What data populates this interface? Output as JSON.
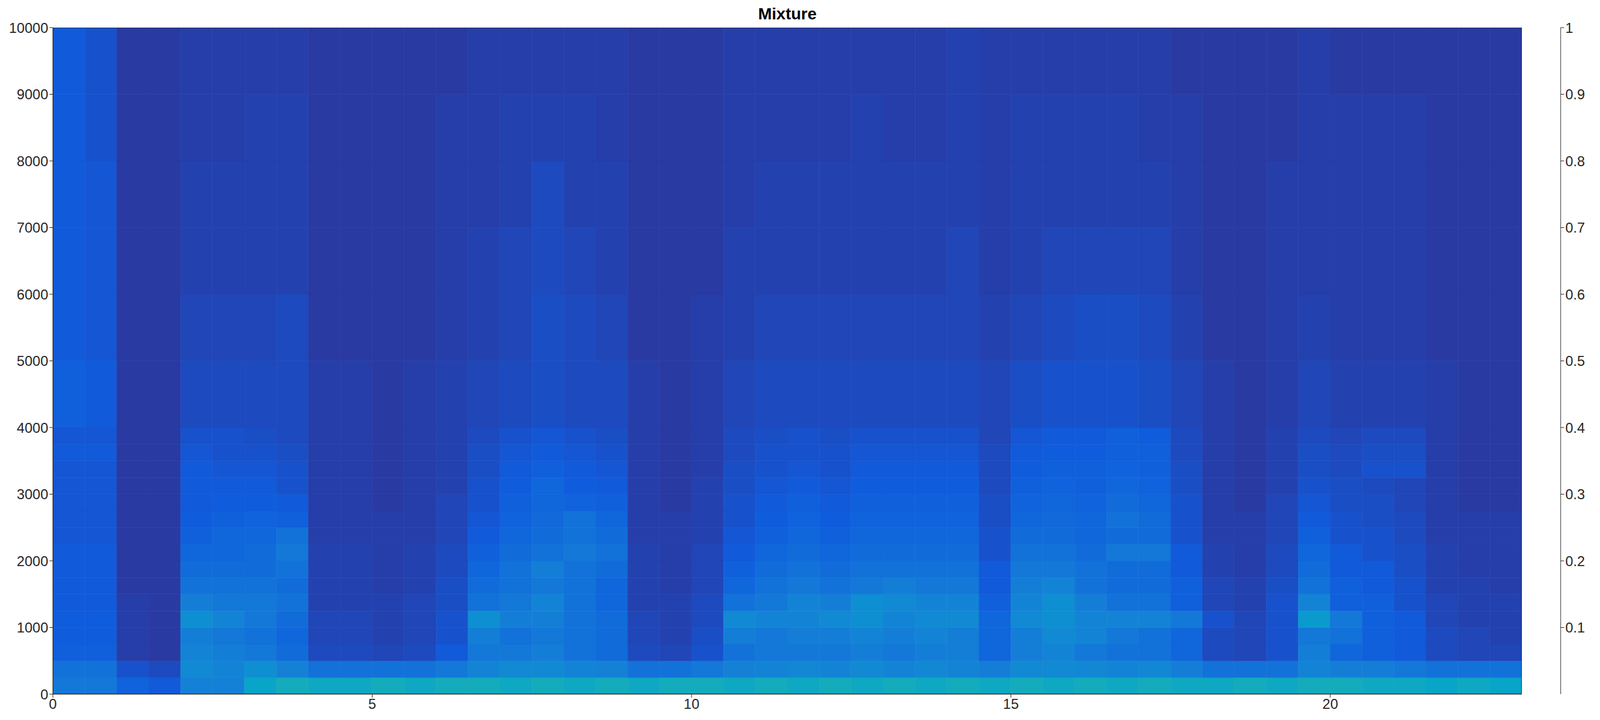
{
  "chart_data": {
    "type": "heatmap",
    "title": "Mixture",
    "x_bins": [
      0,
      0.5,
      1,
      1.5,
      2,
      2.5,
      3,
      3.5,
      4,
      4.5,
      5,
      5.5,
      6,
      6.5,
      7,
      7.5,
      8,
      8.5,
      9,
      9.5,
      10,
      10.5,
      11,
      11.5,
      12,
      12.5,
      13,
      13.5,
      14,
      14.5,
      15,
      15.5,
      16,
      16.5,
      17,
      17.5,
      18,
      18.5,
      19,
      19.5,
      20,
      20.5,
      21,
      21.5,
      22,
      22.5,
      23
    ],
    "y_bins": [
      0,
      250,
      500,
      750,
      1000,
      1250,
      1500,
      1750,
      2000,
      2250,
      2500,
      2750,
      3000,
      3250,
      3500,
      3750,
      4000,
      5000,
      6000,
      7000,
      8000,
      9000,
      10000
    ],
    "cells": [
      [
        0.22,
        0.22,
        0.15,
        0.12,
        0.25,
        0.25,
        0.38,
        0.42,
        0.4,
        0.4,
        0.42,
        0.4,
        0.42,
        0.42,
        0.4,
        0.42,
        0.4,
        0.42,
        0.4,
        0.42,
        0.42,
        0.4,
        0.42,
        0.4,
        0.42,
        0.4,
        0.42,
        0.4,
        0.42,
        0.4,
        0.42,
        0.4,
        0.42,
        0.4,
        0.42,
        0.4,
        0.4,
        0.42,
        0.4,
        0.42,
        0.42,
        0.4,
        0.4,
        0.38,
        0.4,
        0.38
      ],
      [
        0.2,
        0.2,
        0.1,
        0.08,
        0.28,
        0.26,
        0.3,
        0.25,
        0.2,
        0.2,
        0.2,
        0.2,
        0.22,
        0.26,
        0.28,
        0.28,
        0.26,
        0.25,
        0.2,
        0.2,
        0.22,
        0.25,
        0.26,
        0.27,
        0.26,
        0.28,
        0.26,
        0.27,
        0.26,
        0.24,
        0.28,
        0.28,
        0.27,
        0.26,
        0.27,
        0.24,
        0.2,
        0.2,
        0.2,
        0.26,
        0.24,
        0.24,
        0.22,
        0.2,
        0.2,
        0.2
      ],
      [
        0.14,
        0.14,
        0.05,
        0.04,
        0.26,
        0.24,
        0.22,
        0.18,
        0.08,
        0.08,
        0.07,
        0.08,
        0.12,
        0.22,
        0.22,
        0.24,
        0.2,
        0.18,
        0.08,
        0.07,
        0.1,
        0.2,
        0.22,
        0.22,
        0.22,
        0.24,
        0.22,
        0.24,
        0.24,
        0.16,
        0.24,
        0.26,
        0.22,
        0.2,
        0.2,
        0.16,
        0.08,
        0.07,
        0.1,
        0.24,
        0.16,
        0.14,
        0.12,
        0.08,
        0.07,
        0.07
      ],
      [
        0.13,
        0.13,
        0.05,
        0.04,
        0.24,
        0.22,
        0.2,
        0.16,
        0.07,
        0.07,
        0.06,
        0.07,
        0.1,
        0.24,
        0.2,
        0.22,
        0.2,
        0.18,
        0.07,
        0.06,
        0.09,
        0.24,
        0.22,
        0.24,
        0.24,
        0.26,
        0.24,
        0.26,
        0.24,
        0.16,
        0.24,
        0.28,
        0.26,
        0.22,
        0.2,
        0.16,
        0.08,
        0.07,
        0.1,
        0.22,
        0.2,
        0.14,
        0.12,
        0.08,
        0.07,
        0.06
      ],
      [
        0.13,
        0.13,
        0.05,
        0.04,
        0.3,
        0.26,
        0.22,
        0.18,
        0.07,
        0.07,
        0.06,
        0.07,
        0.1,
        0.3,
        0.24,
        0.24,
        0.2,
        0.18,
        0.07,
        0.06,
        0.08,
        0.28,
        0.26,
        0.26,
        0.28,
        0.3,
        0.26,
        0.28,
        0.28,
        0.16,
        0.28,
        0.3,
        0.26,
        0.26,
        0.26,
        0.22,
        0.1,
        0.07,
        0.1,
        0.34,
        0.22,
        0.14,
        0.12,
        0.07,
        0.06,
        0.06
      ],
      [
        0.12,
        0.12,
        0.05,
        0.04,
        0.24,
        0.22,
        0.22,
        0.2,
        0.06,
        0.06,
        0.06,
        0.07,
        0.09,
        0.2,
        0.22,
        0.26,
        0.2,
        0.16,
        0.06,
        0.06,
        0.08,
        0.2,
        0.22,
        0.26,
        0.24,
        0.3,
        0.28,
        0.26,
        0.26,
        0.14,
        0.26,
        0.3,
        0.24,
        0.2,
        0.2,
        0.14,
        0.07,
        0.06,
        0.1,
        0.26,
        0.14,
        0.14,
        0.1,
        0.07,
        0.06,
        0.06
      ],
      [
        0.12,
        0.12,
        0.04,
        0.04,
        0.2,
        0.2,
        0.2,
        0.18,
        0.06,
        0.06,
        0.05,
        0.06,
        0.09,
        0.18,
        0.2,
        0.22,
        0.2,
        0.16,
        0.06,
        0.05,
        0.07,
        0.16,
        0.2,
        0.22,
        0.2,
        0.22,
        0.24,
        0.22,
        0.22,
        0.12,
        0.24,
        0.26,
        0.2,
        0.18,
        0.18,
        0.14,
        0.07,
        0.06,
        0.09,
        0.2,
        0.14,
        0.12,
        0.1,
        0.06,
        0.06,
        0.05
      ],
      [
        0.12,
        0.12,
        0.04,
        0.04,
        0.18,
        0.18,
        0.18,
        0.2,
        0.06,
        0.06,
        0.05,
        0.06,
        0.08,
        0.16,
        0.2,
        0.24,
        0.2,
        0.18,
        0.06,
        0.05,
        0.07,
        0.14,
        0.18,
        0.2,
        0.18,
        0.2,
        0.2,
        0.2,
        0.2,
        0.12,
        0.22,
        0.22,
        0.2,
        0.18,
        0.18,
        0.12,
        0.06,
        0.05,
        0.08,
        0.18,
        0.12,
        0.12,
        0.09,
        0.06,
        0.05,
        0.05
      ],
      [
        0.12,
        0.12,
        0.04,
        0.04,
        0.16,
        0.16,
        0.18,
        0.22,
        0.06,
        0.06,
        0.05,
        0.06,
        0.08,
        0.14,
        0.18,
        0.2,
        0.22,
        0.2,
        0.06,
        0.05,
        0.07,
        0.12,
        0.16,
        0.18,
        0.16,
        0.18,
        0.18,
        0.18,
        0.18,
        0.1,
        0.2,
        0.2,
        0.18,
        0.22,
        0.22,
        0.12,
        0.06,
        0.05,
        0.08,
        0.16,
        0.12,
        0.1,
        0.09,
        0.06,
        0.05,
        0.05
      ],
      [
        0.11,
        0.11,
        0.04,
        0.04,
        0.14,
        0.16,
        0.16,
        0.2,
        0.05,
        0.05,
        0.05,
        0.05,
        0.07,
        0.12,
        0.16,
        0.18,
        0.2,
        0.18,
        0.05,
        0.05,
        0.06,
        0.11,
        0.14,
        0.16,
        0.14,
        0.16,
        0.16,
        0.16,
        0.16,
        0.1,
        0.18,
        0.18,
        0.16,
        0.18,
        0.18,
        0.1,
        0.05,
        0.05,
        0.07,
        0.14,
        0.1,
        0.1,
        0.08,
        0.05,
        0.05,
        0.05
      ],
      [
        0.11,
        0.11,
        0.04,
        0.04,
        0.13,
        0.14,
        0.15,
        0.14,
        0.05,
        0.05,
        0.05,
        0.05,
        0.07,
        0.11,
        0.15,
        0.17,
        0.2,
        0.16,
        0.05,
        0.05,
        0.06,
        0.1,
        0.13,
        0.15,
        0.13,
        0.15,
        0.15,
        0.15,
        0.15,
        0.09,
        0.16,
        0.17,
        0.16,
        0.2,
        0.18,
        0.1,
        0.05,
        0.05,
        0.07,
        0.12,
        0.1,
        0.09,
        0.08,
        0.05,
        0.05,
        0.05
      ],
      [
        0.11,
        0.11,
        0.04,
        0.04,
        0.12,
        0.13,
        0.13,
        0.12,
        0.05,
        0.05,
        0.04,
        0.05,
        0.07,
        0.1,
        0.14,
        0.16,
        0.15,
        0.14,
        0.05,
        0.04,
        0.06,
        0.1,
        0.12,
        0.14,
        0.12,
        0.14,
        0.14,
        0.14,
        0.14,
        0.09,
        0.15,
        0.16,
        0.15,
        0.18,
        0.16,
        0.1,
        0.05,
        0.04,
        0.07,
        0.11,
        0.09,
        0.09,
        0.07,
        0.05,
        0.04,
        0.04
      ],
      [
        0.11,
        0.11,
        0.04,
        0.04,
        0.12,
        0.12,
        0.12,
        0.1,
        0.05,
        0.05,
        0.04,
        0.05,
        0.06,
        0.1,
        0.13,
        0.16,
        0.13,
        0.12,
        0.05,
        0.04,
        0.06,
        0.09,
        0.11,
        0.12,
        0.11,
        0.13,
        0.13,
        0.13,
        0.13,
        0.08,
        0.14,
        0.15,
        0.14,
        0.16,
        0.15,
        0.09,
        0.05,
        0.04,
        0.06,
        0.1,
        0.09,
        0.08,
        0.07,
        0.05,
        0.04,
        0.04
      ],
      [
        0.11,
        0.11,
        0.04,
        0.04,
        0.12,
        0.11,
        0.11,
        0.1,
        0.05,
        0.05,
        0.04,
        0.05,
        0.06,
        0.09,
        0.12,
        0.14,
        0.12,
        0.11,
        0.05,
        0.04,
        0.05,
        0.09,
        0.1,
        0.11,
        0.1,
        0.12,
        0.12,
        0.12,
        0.12,
        0.08,
        0.13,
        0.14,
        0.14,
        0.15,
        0.14,
        0.09,
        0.05,
        0.04,
        0.06,
        0.09,
        0.08,
        0.1,
        0.1,
        0.05,
        0.04,
        0.04
      ],
      [
        0.12,
        0.12,
        0.04,
        0.04,
        0.11,
        0.1,
        0.1,
        0.09,
        0.05,
        0.05,
        0.04,
        0.05,
        0.06,
        0.09,
        0.11,
        0.12,
        0.11,
        0.1,
        0.05,
        0.04,
        0.05,
        0.08,
        0.1,
        0.1,
        0.1,
        0.11,
        0.11,
        0.11,
        0.11,
        0.08,
        0.12,
        0.13,
        0.13,
        0.14,
        0.14,
        0.08,
        0.05,
        0.04,
        0.06,
        0.09,
        0.08,
        0.09,
        0.09,
        0.05,
        0.04,
        0.04
      ],
      [
        0.11,
        0.11,
        0.04,
        0.04,
        0.1,
        0.1,
        0.09,
        0.08,
        0.05,
        0.05,
        0.04,
        0.05,
        0.06,
        0.08,
        0.1,
        0.11,
        0.1,
        0.09,
        0.05,
        0.04,
        0.05,
        0.08,
        0.09,
        0.1,
        0.09,
        0.1,
        0.1,
        0.1,
        0.1,
        0.07,
        0.11,
        0.12,
        0.12,
        0.14,
        0.13,
        0.08,
        0.05,
        0.04,
        0.06,
        0.08,
        0.07,
        0.08,
        0.08,
        0.05,
        0.04,
        0.04
      ],
      [
        0.14,
        0.12,
        0.04,
        0.04,
        0.08,
        0.08,
        0.08,
        0.08,
        0.05,
        0.05,
        0.04,
        0.05,
        0.06,
        0.07,
        0.08,
        0.09,
        0.08,
        0.08,
        0.05,
        0.04,
        0.05,
        0.07,
        0.08,
        0.08,
        0.08,
        0.08,
        0.08,
        0.08,
        0.08,
        0.07,
        0.09,
        0.1,
        0.1,
        0.1,
        0.09,
        0.07,
        0.05,
        0.04,
        0.05,
        0.07,
        0.06,
        0.06,
        0.06,
        0.05,
        0.04,
        0.04
      ],
      [
        0.12,
        0.11,
        0.04,
        0.04,
        0.07,
        0.07,
        0.07,
        0.08,
        0.04,
        0.04,
        0.04,
        0.04,
        0.05,
        0.06,
        0.07,
        0.09,
        0.08,
        0.07,
        0.04,
        0.04,
        0.05,
        0.06,
        0.07,
        0.07,
        0.07,
        0.07,
        0.07,
        0.07,
        0.07,
        0.06,
        0.07,
        0.08,
        0.09,
        0.09,
        0.08,
        0.06,
        0.04,
        0.04,
        0.05,
        0.06,
        0.05,
        0.05,
        0.05,
        0.04,
        0.04,
        0.04
      ],
      [
        0.12,
        0.11,
        0.04,
        0.04,
        0.06,
        0.06,
        0.06,
        0.06,
        0.04,
        0.04,
        0.04,
        0.04,
        0.05,
        0.06,
        0.07,
        0.08,
        0.07,
        0.06,
        0.04,
        0.04,
        0.04,
        0.06,
        0.06,
        0.06,
        0.06,
        0.06,
        0.06,
        0.06,
        0.07,
        0.05,
        0.06,
        0.07,
        0.07,
        0.07,
        0.07,
        0.05,
        0.04,
        0.04,
        0.05,
        0.05,
        0.05,
        0.05,
        0.05,
        0.04,
        0.04,
        0.04
      ],
      [
        0.12,
        0.11,
        0.04,
        0.04,
        0.06,
        0.06,
        0.06,
        0.06,
        0.04,
        0.04,
        0.04,
        0.04,
        0.05,
        0.05,
        0.06,
        0.08,
        0.06,
        0.06,
        0.04,
        0.04,
        0.04,
        0.05,
        0.06,
        0.06,
        0.06,
        0.06,
        0.06,
        0.06,
        0.06,
        0.05,
        0.06,
        0.06,
        0.06,
        0.06,
        0.06,
        0.05,
        0.04,
        0.04,
        0.05,
        0.05,
        0.05,
        0.05,
        0.05,
        0.04,
        0.04,
        0.04
      ],
      [
        0.12,
        0.1,
        0.04,
        0.04,
        0.05,
        0.05,
        0.06,
        0.06,
        0.04,
        0.04,
        0.04,
        0.04,
        0.05,
        0.05,
        0.06,
        0.06,
        0.06,
        0.05,
        0.04,
        0.04,
        0.04,
        0.05,
        0.05,
        0.05,
        0.05,
        0.06,
        0.05,
        0.05,
        0.06,
        0.05,
        0.06,
        0.06,
        0.06,
        0.06,
        0.05,
        0.05,
        0.04,
        0.04,
        0.04,
        0.05,
        0.05,
        0.05,
        0.05,
        0.04,
        0.04,
        0.04
      ],
      [
        0.12,
        0.1,
        0.04,
        0.04,
        0.05,
        0.05,
        0.05,
        0.05,
        0.04,
        0.04,
        0.04,
        0.04,
        0.04,
        0.05,
        0.05,
        0.05,
        0.05,
        0.05,
        0.04,
        0.04,
        0.04,
        0.05,
        0.05,
        0.05,
        0.05,
        0.05,
        0.05,
        0.05,
        0.06,
        0.05,
        0.05,
        0.05,
        0.05,
        0.05,
        0.05,
        0.04,
        0.04,
        0.04,
        0.04,
        0.05,
        0.04,
        0.04,
        0.04,
        0.04,
        0.04,
        0.04
      ]
    ],
    "xlim": [
      0,
      23
    ],
    "xticks": [
      0,
      5,
      10,
      15,
      20
    ],
    "ylim": [
      0,
      10000
    ],
    "yticks": [
      0,
      1000,
      2000,
      3000,
      4000,
      5000,
      6000,
      7000,
      8000,
      9000,
      10000
    ],
    "colorbar": {
      "range": [
        0,
        1
      ],
      "ticks": [
        0.1,
        0.2,
        0.3,
        0.4,
        0.5,
        0.6,
        0.7,
        0.8,
        0.9,
        1
      ]
    }
  }
}
